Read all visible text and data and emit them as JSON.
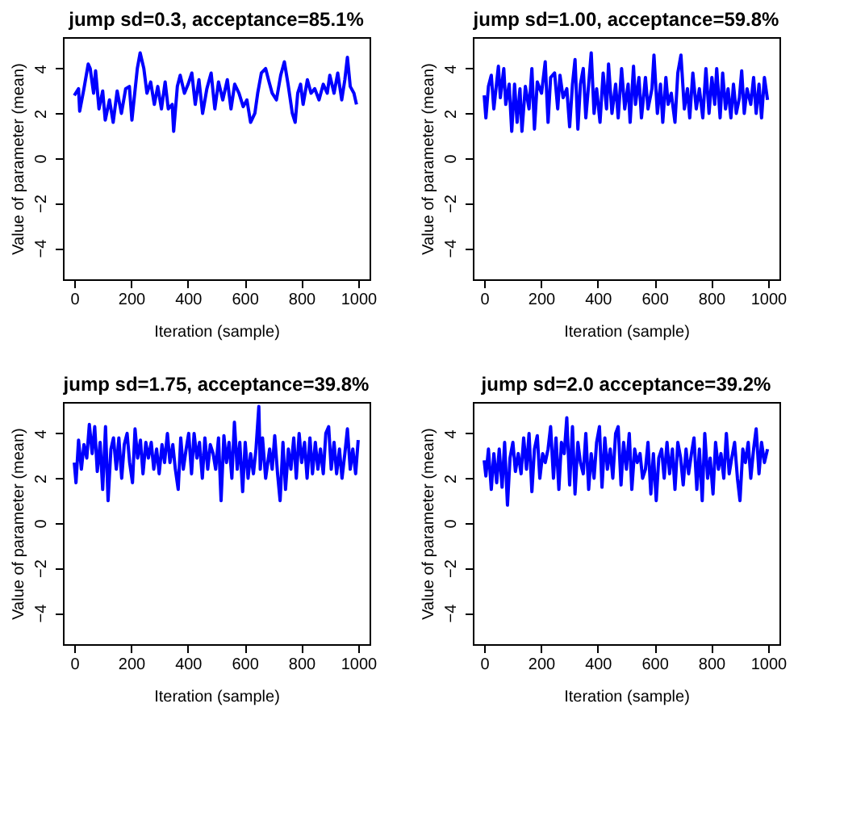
{
  "chart_data": [
    {
      "type": "line",
      "title": "jump sd=0.3, acceptance=85.1%",
      "xlabel": "Iteration (sample)",
      "ylabel": "Value of parameter (mean)",
      "color": "#0000ff",
      "xlim": [
        -40,
        1040
      ],
      "xticks": [
        0,
        200,
        400,
        600,
        800,
        1000
      ],
      "ylim": [
        -5.4,
        5.4
      ],
      "yticks": [
        -4,
        -2,
        0,
        2,
        4
      ],
      "x": [
        0,
        15,
        19,
        34,
        49,
        56,
        68,
        75,
        87,
        100,
        109,
        124,
        137,
        151,
        166,
        181,
        194,
        203,
        222,
        232,
        245,
        256,
        269,
        282,
        294,
        307,
        320,
        331,
        345,
        350,
        363,
        373,
        388,
        401,
        414,
        426,
        439,
        452,
        467,
        482,
        495,
        508,
        523,
        539,
        552,
        565,
        580,
        595,
        608,
        621,
        636,
        646,
        659,
        674,
        684,
        697,
        712,
        727,
        740,
        753,
        768,
        778,
        787,
        797,
        806,
        821,
        834,
        847,
        862,
        877,
        891,
        900,
        915,
        928,
        942,
        953,
        962,
        972,
        985,
        994
      ],
      "values": [
        2.8,
        3.1,
        2.1,
        3.1,
        4.2,
        4.0,
        2.9,
        3.9,
        2.2,
        3.0,
        1.7,
        2.6,
        1.6,
        3.0,
        2.0,
        3.1,
        3.2,
        1.7,
        4.0,
        4.7,
        4.0,
        2.9,
        3.4,
        2.4,
        3.2,
        2.2,
        3.4,
        2.2,
        2.4,
        1.2,
        3.2,
        3.7,
        2.9,
        3.3,
        3.8,
        2.4,
        3.5,
        2.0,
        3.1,
        3.8,
        2.2,
        3.4,
        2.6,
        3.5,
        2.2,
        3.3,
        2.9,
        2.3,
        2.6,
        1.6,
        2.0,
        2.9,
        3.8,
        4.0,
        3.5,
        2.9,
        2.6,
        3.7,
        4.3,
        3.3,
        2.0,
        1.6,
        2.9,
        3.3,
        2.4,
        3.5,
        2.9,
        3.1,
        2.6,
        3.3,
        2.9,
        3.7,
        2.9,
        3.8,
        2.6,
        3.5,
        4.5,
        3.2,
        2.9,
        2.4
      ]
    },
    {
      "type": "line",
      "title": "jump sd=1.00, acceptance=59.8%",
      "xlabel": "Iteration (sample)",
      "ylabel": "Value of parameter (mean)",
      "color": "#0000ff",
      "xlim": [
        -40,
        1040
      ],
      "xticks": [
        0,
        200,
        400,
        600,
        800,
        1000
      ],
      "ylim": [
        -5.4,
        5.4
      ],
      "yticks": [
        -4,
        -2,
        0,
        2,
        4
      ],
      "x": [
        0,
        6,
        15,
        25,
        34,
        50,
        57,
        69,
        76,
        88,
        97,
        107,
        116,
        126,
        133,
        145,
        158,
        168,
        177,
        187,
        202,
        215,
        225,
        234,
        248,
        259,
        267,
        278,
        291,
        301,
        311,
        320,
        330,
        339,
        349,
        358,
        368,
        377,
        387,
        396,
        408,
        419,
        431,
        438,
        450,
        463,
        472,
        484,
        495,
        507,
        514,
        526,
        533,
        545,
        554,
        568,
        577,
        591,
        598,
        610,
        621,
        629,
        640,
        648,
        659,
        672,
        682,
        693,
        705,
        716,
        724,
        735,
        747,
        758,
        770,
        781,
        792,
        802,
        812,
        819,
        831,
        840,
        850,
        859,
        869,
        878,
        888,
        899,
        907,
        916,
        926,
        939,
        949,
        958,
        968,
        977,
        987,
        998
      ],
      "values": [
        2.8,
        1.8,
        3.2,
        3.7,
        2.2,
        4.1,
        2.7,
        4.0,
        2.4,
        3.3,
        1.2,
        3.3,
        1.6,
        3.1,
        1.2,
        3.2,
        2.2,
        4.0,
        1.3,
        3.4,
        2.9,
        4.3,
        1.6,
        3.6,
        3.8,
        2.2,
        3.7,
        2.7,
        3.1,
        1.4,
        3.3,
        4.4,
        1.3,
        3.3,
        4.0,
        1.8,
        3.3,
        4.7,
        2.0,
        3.1,
        1.6,
        3.8,
        2.2,
        4.2,
        2.0,
        3.3,
        1.8,
        4.0,
        2.2,
        3.3,
        1.6,
        4.1,
        2.4,
        3.6,
        1.8,
        3.6,
        2.2,
        3.1,
        4.6,
        2.0,
        3.3,
        1.6,
        3.6,
        2.4,
        2.9,
        1.6,
        3.8,
        4.6,
        2.2,
        3.1,
        1.8,
        3.8,
        2.2,
        3.1,
        1.8,
        4.0,
        2.0,
        3.6,
        2.4,
        4.0,
        1.8,
        3.8,
        2.2,
        3.1,
        1.8,
        3.3,
        2.0,
        2.7,
        3.9,
        2.0,
        3.1,
        2.4,
        3.6,
        2.0,
        3.3,
        1.8,
        3.6,
        2.6
      ]
    },
    {
      "type": "line",
      "title": "jump sd=1.75, acceptance=39.8%",
      "xlabel": "Iteration (sample)",
      "ylabel": "Value of parameter (mean)",
      "color": "#0000ff",
      "xlim": [
        -40,
        1040
      ],
      "xticks": [
        0,
        200,
        400,
        600,
        800,
        1000
      ],
      "ylim": [
        -5.4,
        5.4
      ],
      "yticks": [
        -4,
        -2,
        0,
        2,
        4
      ],
      "x": [
        0,
        6,
        15,
        25,
        34,
        44,
        53,
        63,
        72,
        81,
        91,
        100,
        110,
        119,
        129,
        138,
        148,
        157,
        167,
        176,
        186,
        195,
        205,
        214,
        223,
        233,
        242,
        252,
        261,
        271,
        280,
        290,
        299,
        309,
        318,
        328,
        337,
        347,
        356,
        366,
        375,
        384,
        394,
        403,
        413,
        422,
        432,
        441,
        451,
        460,
        470,
        479,
        489,
        498,
        508,
        517,
        527,
        536,
        545,
        555,
        564,
        574,
        583,
        593,
        602,
        612,
        621,
        631,
        640,
        650,
        655,
        663,
        674,
        688,
        697,
        706,
        716,
        725,
        735,
        744,
        754,
        763,
        773,
        782,
        792,
        801,
        811,
        820,
        830,
        839,
        849,
        858,
        867,
        877,
        886,
        896,
        905,
        915,
        924,
        934,
        943,
        953,
        962,
        972,
        981,
        991,
        1000
      ],
      "values": [
        2.7,
        1.8,
        3.7,
        2.4,
        3.5,
        2.9,
        4.4,
        3.1,
        4.3,
        2.3,
        3.6,
        1.5,
        4.3,
        1.0,
        3.3,
        3.8,
        2.4,
        3.8,
        2.0,
        3.5,
        4.0,
        2.7,
        1.8,
        4.2,
        2.9,
        3.7,
        2.2,
        3.6,
        2.9,
        3.6,
        2.4,
        3.3,
        2.2,
        3.5,
        2.7,
        4.0,
        2.7,
        3.5,
        2.4,
        1.5,
        3.8,
        2.4,
        3.3,
        4.0,
        2.2,
        4.0,
        2.9,
        3.6,
        2.0,
        3.8,
        2.4,
        3.5,
        3.1,
        2.4,
        3.8,
        1.0,
        3.9,
        2.7,
        3.6,
        2.0,
        4.5,
        2.4,
        3.6,
        1.4,
        3.6,
        2.0,
        3.1,
        2.2,
        3.3,
        5.2,
        2.4,
        3.8,
        2.0,
        3.3,
        2.4,
        3.9,
        2.2,
        1.0,
        3.6,
        1.5,
        3.3,
        2.4,
        3.8,
        2.0,
        4.0,
        2.7,
        3.6,
        2.0,
        3.8,
        2.2,
        3.6,
        2.4,
        3.3,
        2.2,
        4.0,
        4.3,
        2.4,
        3.6,
        2.2,
        3.3,
        2.0,
        3.1,
        4.2,
        2.4,
        3.3,
        2.2,
        3.7
      ]
    },
    {
      "type": "line",
      "title": "jump sd=2.0 acceptance=39.2%",
      "xlabel": "Iteration (sample)",
      "ylabel": "Value of parameter (mean)",
      "color": "#0000ff",
      "xlim": [
        -40,
        1040
      ],
      "xticks": [
        0,
        200,
        400,
        600,
        800,
        1000
      ],
      "ylim": [
        -5.4,
        5.4
      ],
      "yticks": [
        -4,
        -2,
        0,
        2,
        4
      ],
      "x": [
        0,
        6,
        15,
        25,
        34,
        44,
        53,
        63,
        72,
        82,
        91,
        101,
        110,
        120,
        130,
        139,
        149,
        158,
        168,
        177,
        187,
        196,
        206,
        215,
        225,
        234,
        244,
        253,
        263,
        272,
        282,
        291,
        301,
        311,
        320,
        330,
        339,
        349,
        358,
        368,
        377,
        387,
        396,
        406,
        415,
        425,
        434,
        444,
        453,
        463,
        472,
        482,
        491,
        501,
        511,
        520,
        530,
        539,
        549,
        558,
        568,
        577,
        587,
        596,
        606,
        615,
        625,
        634,
        644,
        653,
        663,
        672,
        682,
        692,
        701,
        711,
        720,
        730,
        739,
        749,
        758,
        768,
        777,
        787,
        796,
        806,
        815,
        825,
        834,
        844,
        853,
        863,
        872,
        882,
        892,
        901,
        911,
        920,
        930,
        939,
        949,
        958,
        968,
        977,
        987,
        998
      ],
      "values": [
        2.8,
        2.1,
        3.3,
        1.5,
        3.1,
        1.8,
        3.3,
        1.6,
        3.6,
        0.8,
        2.9,
        3.6,
        2.3,
        3.1,
        2.2,
        3.8,
        2.4,
        4.0,
        1.4,
        3.3,
        3.9,
        2.0,
        3.1,
        2.7,
        3.3,
        4.3,
        2.0,
        3.8,
        1.5,
        3.6,
        3.1,
        4.7,
        1.7,
        4.3,
        1.3,
        3.6,
        2.7,
        2.2,
        4.0,
        1.5,
        3.1,
        2.0,
        3.6,
        4.3,
        1.6,
        3.8,
        2.4,
        3.3,
        2.0,
        4.0,
        4.3,
        1.7,
        3.6,
        2.4,
        4.0,
        1.5,
        3.3,
        2.7,
        3.1,
        2.0,
        2.4,
        3.6,
        1.3,
        3.1,
        1.0,
        2.9,
        3.3,
        2.0,
        3.6,
        2.2,
        3.3,
        1.5,
        3.6,
        2.9,
        1.7,
        3.3,
        2.2,
        3.1,
        3.8,
        1.5,
        3.3,
        1.0,
        4.0,
        2.0,
        2.9,
        1.3,
        3.6,
        2.4,
        3.1,
        2.0,
        4.0,
        2.2,
        2.9,
        3.6,
        2.0,
        1.0,
        3.3,
        2.7,
        3.6,
        2.0,
        3.3,
        4.2,
        2.2,
        3.6,
        2.7,
        3.3
      ]
    }
  ]
}
